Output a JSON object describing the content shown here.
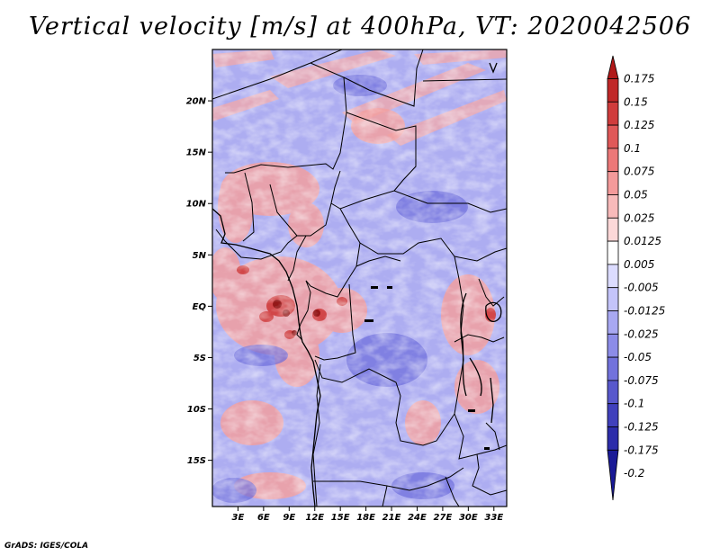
{
  "title": "Vertical velocity [m/s] at 400hPa, VT: 2020042506",
  "footer": "GrADS: IGES/COLA",
  "map": {
    "lat_labels": [
      "20N",
      "15N",
      "10N",
      "5N",
      "EQ",
      "5S",
      "10S",
      "15S"
    ],
    "lon_labels": [
      "3E",
      "6E",
      "9E",
      "12E",
      "15E",
      "18E",
      "21E",
      "24E",
      "27E",
      "30E",
      "33E"
    ],
    "lon_range": [
      0,
      34.5
    ],
    "lat_range": [
      -19.5,
      25
    ]
  },
  "legend": {
    "labels": [
      "0.175",
      "0.15",
      "0.125",
      "0.1",
      "0.075",
      "0.05",
      "0.025",
      "0.0125",
      "0.005",
      "-0.005",
      "-0.0125",
      "-0.025",
      "-0.05",
      "-0.075",
      "-0.1",
      "-0.125",
      "-0.175",
      "-0.2"
    ],
    "colors": [
      "#b01818",
      "#c02828",
      "#d03c3c",
      "#e05858",
      "#ec7878",
      "#f49a9a",
      "#f8baba",
      "#fcd8d8",
      "#ffffff",
      "#dcdcff",
      "#c4c4fa",
      "#a8a8f2",
      "#8c8ce8",
      "#7272dc",
      "#5858cc",
      "#4040bc",
      "#2c2caa",
      "#1a1a96"
    ]
  }
}
